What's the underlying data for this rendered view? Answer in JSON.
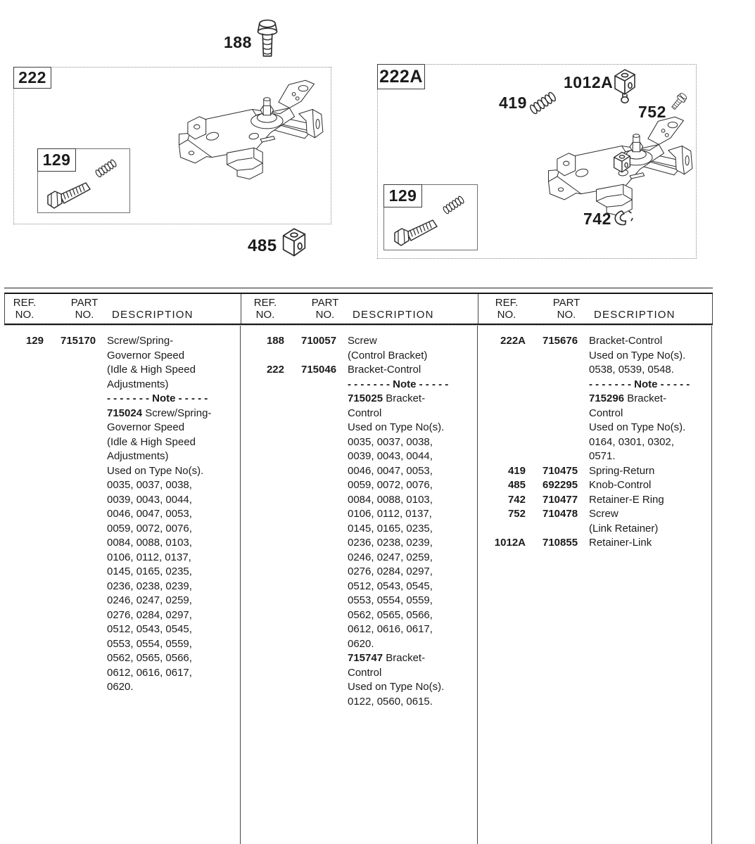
{
  "figures": {
    "screw_188": "188",
    "box_222": "222",
    "box_129": "129",
    "knob_485": "485",
    "box_222A": "222A",
    "knob_1012A": "1012A",
    "spring_419": "419",
    "screw_752": "752",
    "ring_742": "742"
  },
  "table": {
    "headers": {
      "ref_line1": "REF.",
      "ref_line2": "NO.",
      "part_line1": "PART",
      "part_line2": "NO.",
      "desc": "DESCRIPTION"
    },
    "columns": [
      {
        "entries": [
          {
            "ref": "129",
            "part": "715170",
            "desc": [
              {
                "t": "Screw/Spring-"
              },
              {
                "t": "Governor Speed"
              },
              {
                "t": "(Idle & High Speed"
              },
              {
                "t": "Adjustments)"
              },
              {
                "note": "- - - - - - -  Note  - - - - -"
              },
              {
                "b": "715024",
                "t": " Screw/Spring-"
              },
              {
                "t": "Governor Speed"
              },
              {
                "t": "(Idle & High Speed"
              },
              {
                "t": "Adjustments)"
              },
              {
                "t": "Used on Type No(s)."
              },
              {
                "t": "0035, 0037, 0038,"
              },
              {
                "t": "0039, 0043, 0044,"
              },
              {
                "t": "0046, 0047, 0053,"
              },
              {
                "t": "0059, 0072, 0076,"
              },
              {
                "t": "0084, 0088, 0103,"
              },
              {
                "t": "0106, 0112, 0137,"
              },
              {
                "t": "0145, 0165, 0235,"
              },
              {
                "t": "0236, 0238, 0239,"
              },
              {
                "t": "0246, 0247, 0259,"
              },
              {
                "t": "0276, 0284, 0297,"
              },
              {
                "t": "0512, 0543, 0545,"
              },
              {
                "t": "0553, 0554, 0559,"
              },
              {
                "t": "0562, 0565, 0566,"
              },
              {
                "t": "0612, 0616, 0617,"
              },
              {
                "t": "0620."
              }
            ]
          }
        ]
      },
      {
        "entries": [
          {
            "ref": "188",
            "part": "710057",
            "desc": [
              {
                "t": "Screw"
              },
              {
                "t": "(Control Bracket)"
              }
            ]
          },
          {
            "ref": "222",
            "part": "715046",
            "desc": [
              {
                "t": "Bracket-Control"
              },
              {
                "note": "- - - - - - -  Note  - - - - -"
              },
              {
                "b": "715025",
                "t": " Bracket-"
              },
              {
                "t": "Control"
              },
              {
                "t": "Used on Type No(s)."
              },
              {
                "t": "0035, 0037, 0038,"
              },
              {
                "t": "0039, 0043, 0044,"
              },
              {
                "t": "0046, 0047, 0053,"
              },
              {
                "t": "0059, 0072, 0076,"
              },
              {
                "t": "0084, 0088, 0103,"
              },
              {
                "t": "0106, 0112, 0137,"
              },
              {
                "t": "0145, 0165, 0235,"
              },
              {
                "t": "0236, 0238, 0239,"
              },
              {
                "t": "0246, 0247, 0259,"
              },
              {
                "t": "0276, 0284, 0297,"
              },
              {
                "t": "0512, 0543, 0545,"
              },
              {
                "t": "0553, 0554, 0559,"
              },
              {
                "t": "0562, 0565, 0566,"
              },
              {
                "t": "0612, 0616, 0617,"
              },
              {
                "t": "0620."
              },
              {
                "b": "715747",
                "t": " Bracket-"
              },
              {
                "t": "Control"
              },
              {
                "t": "Used on Type No(s)."
              },
              {
                "t": "0122, 0560, 0615."
              }
            ]
          }
        ]
      },
      {
        "entries": [
          {
            "ref": "222A",
            "part": "715676",
            "desc": [
              {
                "t": "Bracket-Control"
              },
              {
                "t": "Used on Type No(s)."
              },
              {
                "t": "0538, 0539, 0548."
              },
              {
                "note": "- - - - - - -  Note  - - - - -"
              },
              {
                "b": "715296",
                "t": " Bracket-"
              },
              {
                "t": "Control"
              },
              {
                "t": "Used on Type No(s)."
              },
              {
                "t": "0164, 0301, 0302,"
              },
              {
                "t": "0571."
              }
            ]
          },
          {
            "ref": "419",
            "part": "710475",
            "desc": [
              {
                "t": "Spring-Return"
              }
            ]
          },
          {
            "ref": "485",
            "part": "692295",
            "desc": [
              {
                "t": "Knob-Control"
              }
            ]
          },
          {
            "ref": "742",
            "part": "710477",
            "desc": [
              {
                "t": "Retainer-E Ring"
              }
            ]
          },
          {
            "ref": "752",
            "part": "710478",
            "desc": [
              {
                "t": "Screw"
              },
              {
                "t": "(Link Retainer)"
              }
            ]
          },
          {
            "ref": "1012A",
            "part": "710855",
            "desc": [
              {
                "t": "Retainer-Link"
              }
            ]
          }
        ]
      }
    ]
  }
}
